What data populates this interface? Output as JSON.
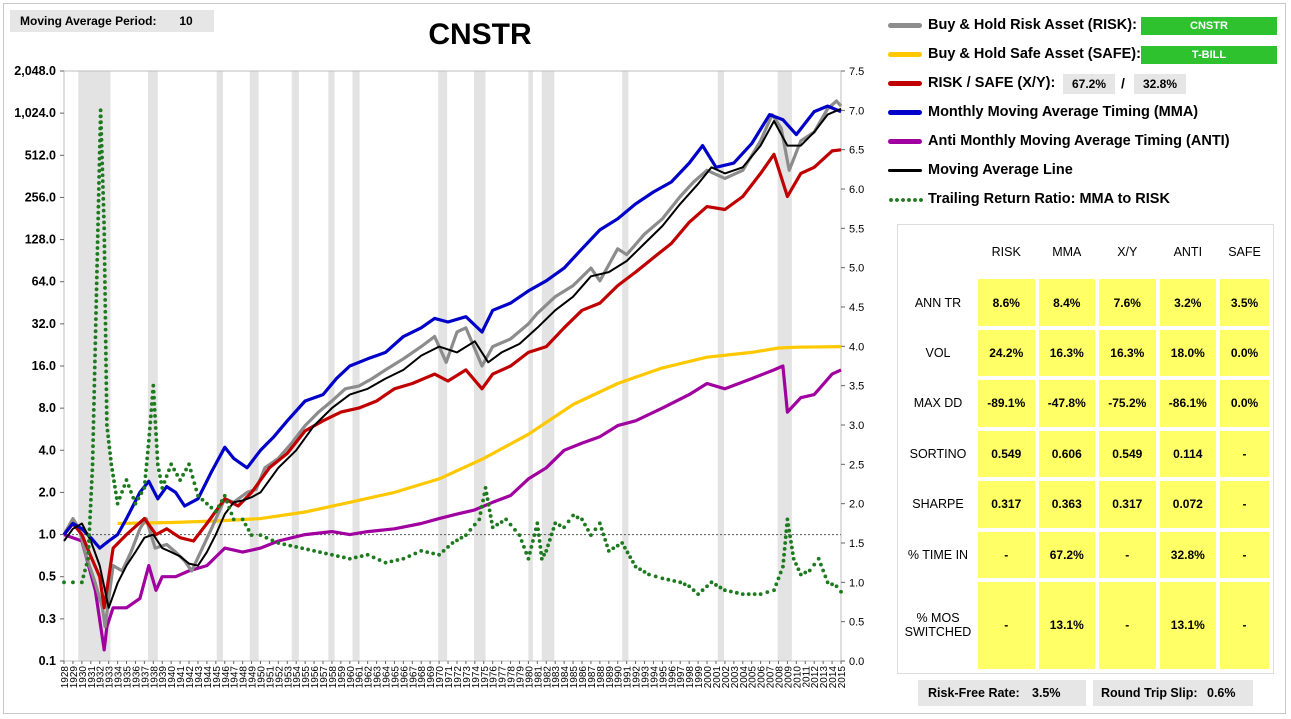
{
  "settings": {
    "period_label": "Moving Average Period:",
    "period_value": "10"
  },
  "legend": {
    "risk_label": "Buy & Hold Risk Asset (RISK):",
    "risk_asset": "CNSTR",
    "safe_label": "Buy & Hold Safe Asset (SAFE):",
    "safe_asset": "T-BILL",
    "xy_label": "RISK / SAFE (X/Y):",
    "xy_risk_pct": "67.2%",
    "xy_sep": "/",
    "xy_safe_pct": "32.8%",
    "mma_label": "Monthly Moving Average Timing (MMA)",
    "anti_label": "Anti Monthly Moving Average Timing (ANTI)",
    "ma_label": "Moving Average Line",
    "ratio_label": "Trailing Return Ratio: MMA to RISK"
  },
  "stats": {
    "headers": [
      "RISK",
      "MMA",
      "X/Y",
      "ANTI",
      "SAFE"
    ],
    "rows": [
      {
        "label": "ANN TR",
        "values": [
          "8.6%",
          "8.4%",
          "7.6%",
          "3.2%",
          "3.5%"
        ]
      },
      {
        "label": "VOL",
        "values": [
          "24.2%",
          "16.3%",
          "16.3%",
          "18.0%",
          "0.0%"
        ]
      },
      {
        "label": "MAX DD",
        "values": [
          "-89.1%",
          "-47.8%",
          "-75.2%",
          "-86.1%",
          "0.0%"
        ]
      },
      {
        "label": "SORTINO",
        "values": [
          "0.549",
          "0.606",
          "0.549",
          "0.114",
          "-"
        ]
      },
      {
        "label": "SHARPE",
        "values": [
          "0.317",
          "0.363",
          "0.317",
          "0.072",
          "-"
        ]
      },
      {
        "label": "% TIME IN",
        "values": [
          "-",
          "67.2%",
          "-",
          "32.8%",
          "-"
        ]
      },
      {
        "label_line1": "% MOS",
        "label_line2": "SWITCHED",
        "values": [
          "-",
          "13.1%",
          "-",
          "13.1%",
          "-"
        ]
      }
    ]
  },
  "footer": {
    "rf_label": "Risk-Free Rate:",
    "rf_value": "3.5%",
    "slip_label": "Round Trip Slip:",
    "slip_value": "0.6%"
  },
  "chart_data": {
    "type": "line",
    "title": "CNSTR",
    "y_scale": "log2",
    "ylim": [
      0.125,
      2048
    ],
    "yticks": [
      0.125,
      0.25,
      0.5,
      1,
      2,
      4,
      8,
      16,
      32,
      64,
      128,
      256,
      512,
      1024,
      2048
    ],
    "ytick_labels": [
      "0.1",
      "0.3",
      "0.5",
      "1.0",
      "2.0",
      "4.0",
      "8.0",
      "16.0",
      "32.0",
      "64.0",
      "128.0",
      "256.0",
      "512.0",
      "1,024.0",
      "2,048.0"
    ],
    "y2lim": [
      0,
      7.5
    ],
    "y2ticks": [
      0.0,
      0.5,
      1.0,
      1.5,
      2.0,
      2.5,
      3.0,
      3.5,
      4.0,
      4.5,
      5.0,
      5.5,
      6.0,
      6.5,
      7.0,
      7.5
    ],
    "y2tick_labels": [
      "0.0",
      "0.5",
      "1.0",
      "1.5",
      "2.0",
      "2.5",
      "3.0",
      "3.5",
      "4.0",
      "4.5",
      "5.0",
      "5.5",
      "6.0",
      "6.5",
      "7.0",
      "7.5"
    ],
    "xlim": [
      1928,
      2015
    ],
    "xticks": [
      1928,
      1929,
      1930,
      1931,
      1932,
      1933,
      1934,
      1935,
      1936,
      1937,
      1938,
      1939,
      1940,
      1941,
      1942,
      1943,
      1944,
      1945,
      1946,
      1947,
      1948,
      1949,
      1950,
      1951,
      1952,
      1953,
      1954,
      1955,
      1956,
      1957,
      1958,
      1959,
      1960,
      1961,
      1962,
      1963,
      1964,
      1965,
      1966,
      1967,
      1968,
      1969,
      1970,
      1971,
      1972,
      1973,
      1974,
      1975,
      1976,
      1977,
      1978,
      1979,
      1980,
      1981,
      1982,
      1983,
      1984,
      1985,
      1986,
      1987,
      1988,
      1989,
      1990,
      1991,
      1992,
      1993,
      1994,
      1995,
      1996,
      1997,
      1998,
      1999,
      2000,
      2001,
      2002,
      2003,
      2004,
      2005,
      2006,
      2007,
      2008,
      2009,
      2010,
      2011,
      2012,
      2013,
      2014,
      2015
    ],
    "grid": false,
    "reference_line_y": 1.0,
    "shaded_periods": [
      [
        1929.6,
        1933.2
      ],
      [
        1937.4,
        1938.5
      ],
      [
        1945.1,
        1945.8
      ],
      [
        1948.8,
        1949.8
      ],
      [
        1953.5,
        1954.3
      ],
      [
        1957.6,
        1958.3
      ],
      [
        1960.3,
        1961.1
      ],
      [
        1969.9,
        1970.9
      ],
      [
        1973.9,
        1975.2
      ],
      [
        1980.0,
        1980.5
      ],
      [
        1981.5,
        1982.9
      ],
      [
        1990.5,
        1991.2
      ],
      [
        2001.2,
        2001.9
      ],
      [
        2007.9,
        2009.5
      ]
    ],
    "series": [
      {
        "name": "Buy & Hold Risk Asset (RISK)",
        "color": "#8c8c8c",
        "axis": "left",
        "style": "line",
        "x": [
          1928,
          1929,
          1929.7,
          1930.5,
          1931.5,
          1932.3,
          1932.6,
          1933.5,
          1934.5,
          1935.5,
          1936.5,
          1937.2,
          1938.2,
          1939.5,
          1940.5,
          1941.5,
          1942.3,
          1943.5,
          1944.5,
          1946.0,
          1947.0,
          1948.5,
          1949.5,
          1950.5,
          1952.0,
          1953.5,
          1955.0,
          1956.5,
          1958.0,
          1959.5,
          1961.0,
          1962.5,
          1964.0,
          1966.0,
          1968.0,
          1969.5,
          1970.8,
          1972.0,
          1973.0,
          1974.8,
          1976.0,
          1978.0,
          1980.0,
          1981.0,
          1983.0,
          1985.0,
          1987.0,
          1988.0,
          1990.0,
          1991.0,
          1993.0,
          1995.0,
          1997.0,
          1998.5,
          2000.0,
          2002.0,
          2004.0,
          2006.0,
          2007.3,
          2008.3,
          2009.2,
          2010.5,
          2012.0,
          2013.5,
          2014.5,
          2015
        ],
        "y": [
          1.0,
          1.3,
          1.1,
          0.7,
          0.45,
          0.3,
          0.22,
          0.6,
          0.55,
          0.75,
          1.1,
          1.3,
          0.8,
          0.85,
          0.75,
          0.65,
          0.55,
          0.8,
          1.1,
          1.8,
          1.7,
          2.0,
          2.1,
          3.0,
          3.5,
          4.5,
          6.0,
          7.5,
          9.0,
          11.0,
          11.5,
          13.0,
          15.0,
          18.0,
          22.0,
          26.0,
          17.0,
          28.0,
          30.0,
          16.0,
          22.0,
          25.0,
          32.0,
          38.0,
          50.0,
          60.0,
          80.0,
          65.0,
          110.0,
          100.0,
          140.0,
          180.0,
          260.0,
          330.0,
          400.0,
          350.0,
          400.0,
          650.0,
          1000.0,
          800.0,
          400.0,
          650.0,
          750.0,
          1100.0,
          1250.0,
          1150.0
        ]
      },
      {
        "name": "Buy & Hold Safe Asset (SAFE)",
        "color": "#ffc800",
        "axis": "left",
        "style": "line",
        "x": [
          1934,
          1940,
          1945,
          1950,
          1955,
          1960,
          1965,
          1970,
          1975,
          1980,
          1985,
          1990,
          1995,
          2000,
          2005,
          2008,
          2010,
          2015
        ],
        "y": [
          1.2,
          1.22,
          1.25,
          1.3,
          1.45,
          1.7,
          2.0,
          2.5,
          3.5,
          5.2,
          8.5,
          12.0,
          15.5,
          18.5,
          20.0,
          21.5,
          21.8,
          22.0
        ]
      },
      {
        "name": "RISK / SAFE (X/Y)",
        "color": "#c00000",
        "axis": "left",
        "style": "line",
        "x": [
          1928,
          1929,
          1930,
          1931,
          1932.0,
          1932.5,
          1933.5,
          1935.0,
          1937.0,
          1938.3,
          1939.5,
          1941.0,
          1942.5,
          1944.0,
          1946.0,
          1947.5,
          1949.0,
          1951.0,
          1953.0,
          1955.0,
          1957.0,
          1959.0,
          1961.0,
          1963.0,
          1965.0,
          1967.0,
          1969.5,
          1971.0,
          1973.0,
          1974.8,
          1976.0,
          1978.0,
          1980.0,
          1982.0,
          1984.0,
          1986.0,
          1988.0,
          1990.0,
          1992.0,
          1994.0,
          1996.0,
          1998.0,
          2000.0,
          2002.0,
          2004.0,
          2006.0,
          2007.5,
          2009.0,
          2010.5,
          2012.0,
          2014.0,
          2015
        ],
        "y": [
          1.0,
          1.2,
          1.0,
          0.7,
          0.5,
          0.3,
          0.8,
          1.0,
          1.3,
          1.0,
          1.1,
          0.95,
          0.9,
          1.2,
          1.8,
          1.6,
          2.0,
          3.0,
          3.8,
          5.5,
          6.5,
          7.5,
          8.0,
          9.0,
          11.0,
          12.0,
          14.0,
          12.5,
          15.0,
          11.0,
          14.0,
          16.0,
          20.0,
          22.0,
          30.0,
          40.0,
          45.0,
          60.0,
          75.0,
          95.0,
          120.0,
          170.0,
          220.0,
          210.0,
          260.0,
          380.0,
          520.0,
          260.0,
          380.0,
          420.0,
          550.0,
          560.0
        ]
      },
      {
        "name": "Monthly Moving Average Timing (MMA)",
        "color": "#0000c8",
        "axis": "left",
        "style": "line",
        "x": [
          1928,
          1929,
          1930,
          1931,
          1932,
          1933,
          1934,
          1935,
          1936.5,
          1937.5,
          1938.5,
          1939.5,
          1940.5,
          1941.5,
          1943.0,
          1944.5,
          1946.0,
          1947.0,
          1948.5,
          1950.0,
          1951.5,
          1953.0,
          1955.0,
          1957.0,
          1958.5,
          1960.0,
          1962.0,
          1964.0,
          1966.0,
          1968.0,
          1969.5,
          1971.0,
          1973.0,
          1974.8,
          1976.0,
          1978.0,
          1980.0,
          1982.0,
          1984.0,
          1986.0,
          1988.0,
          1990.0,
          1992.0,
          1994.0,
          1996.0,
          1998.0,
          1999.5,
          2001.0,
          2003.0,
          2005.0,
          2007.0,
          2008.5,
          2010.0,
          2012.0,
          2013.5,
          2015
        ],
        "y": [
          1.0,
          1.2,
          1.1,
          0.95,
          0.8,
          0.9,
          1.0,
          1.3,
          2.0,
          2.4,
          1.8,
          2.2,
          2.0,
          1.6,
          1.8,
          2.8,
          4.2,
          3.5,
          3.0,
          4.0,
          5.0,
          6.5,
          9.0,
          10.0,
          13.0,
          16.0,
          18.0,
          20.0,
          26.0,
          30.0,
          35.0,
          33.0,
          36.0,
          28.0,
          40.0,
          45.0,
          55.0,
          65.0,
          80.0,
          110.0,
          150.0,
          180.0,
          230.0,
          280.0,
          330.0,
          450.0,
          600.0,
          420.0,
          450.0,
          620.0,
          1000.0,
          920.0,
          720.0,
          1050.0,
          1150.0,
          1050.0
        ]
      },
      {
        "name": "Anti Monthly Moving Average Timing (ANTI)",
        "color": "#a000a0",
        "axis": "left",
        "style": "line",
        "x": [
          1928,
          1930,
          1931.5,
          1932.5,
          1932.8,
          1933.5,
          1935.0,
          1936.5,
          1937.5,
          1938.3,
          1939.0,
          1940.5,
          1942.0,
          1944.0,
          1946.0,
          1948.0,
          1950.0,
          1952.0,
          1955.0,
          1958.0,
          1960.0,
          1962.0,
          1965.0,
          1968.0,
          1970.0,
          1972.0,
          1974.0,
          1976.0,
          1978.0,
          1980.0,
          1982.0,
          1984.0,
          1986.0,
          1988.0,
          1990.0,
          1992.0,
          1995.0,
          1998.0,
          2000.0,
          2002.0,
          2005.0,
          2007.5,
          2008.5,
          2009.0,
          2010.5,
          2012.0,
          2014.0,
          2015
        ],
        "y": [
          1.0,
          0.9,
          0.4,
          0.15,
          0.22,
          0.3,
          0.3,
          0.35,
          0.6,
          0.4,
          0.5,
          0.5,
          0.55,
          0.6,
          0.8,
          0.75,
          0.8,
          0.9,
          1.0,
          1.05,
          1.0,
          1.05,
          1.1,
          1.2,
          1.3,
          1.4,
          1.5,
          1.7,
          1.9,
          2.5,
          3.0,
          4.0,
          4.5,
          5.0,
          6.0,
          6.5,
          8.0,
          10.0,
          12.0,
          11.0,
          13.0,
          15.0,
          16.0,
          7.5,
          9.5,
          10.0,
          14.0,
          15.0
        ]
      },
      {
        "name": "Moving Average Line",
        "color": "#000000",
        "axis": "left",
        "style": "line",
        "x": [
          1928,
          1929,
          1930,
          1931,
          1932,
          1933,
          1934,
          1935,
          1936,
          1937,
          1938,
          1939,
          1940,
          1941,
          1942,
          1943,
          1944,
          1945,
          1946,
          1947,
          1948,
          1949,
          1950,
          1952,
          1954,
          1956,
          1958,
          1960,
          1962,
          1964,
          1966,
          1968,
          1970,
          1972,
          1974,
          1975.5,
          1977,
          1979,
          1981,
          1983,
          1985,
          1987,
          1989,
          1991,
          1993,
          1995,
          1997,
          1999,
          2000.5,
          2002,
          2004,
          2006,
          2007.5,
          2009,
          2010.5,
          2012,
          2013.5,
          2015
        ],
        "y": [
          0.9,
          1.1,
          1.2,
          0.9,
          0.6,
          0.3,
          0.45,
          0.6,
          0.75,
          0.95,
          1.0,
          0.8,
          0.75,
          0.7,
          0.62,
          0.6,
          0.75,
          1.0,
          1.4,
          1.7,
          1.75,
          1.85,
          2.0,
          3.0,
          4.0,
          6.0,
          8.0,
          10.0,
          11.0,
          13.0,
          15.0,
          19.0,
          22.0,
          20.0,
          24.0,
          17.0,
          20.0,
          23.0,
          30.0,
          40.0,
          50.0,
          70.0,
          75.0,
          90.0,
          120.0,
          160.0,
          230.0,
          320.0,
          420.0,
          380.0,
          420.0,
          600.0,
          900.0,
          600.0,
          600.0,
          750.0,
          1000.0,
          1100.0
        ]
      },
      {
        "name": "Trailing Return Ratio: MMA to RISK",
        "color": "#1e7a1e",
        "axis": "right",
        "style": "dotted",
        "x": [
          1928,
          1929,
          1930,
          1930.7,
          1931.2,
          1931.6,
          1931.9,
          1932.1,
          1932.5,
          1932.8,
          1933.3,
          1934.0,
          1935.0,
          1936.0,
          1937.0,
          1937.5,
          1938.0,
          1938.5,
          1939.0,
          1940.0,
          1941.0,
          1942.0,
          1943.0,
          1944.0,
          1945.0,
          1946.0,
          1947.0,
          1948.0,
          1949.0,
          1950.0,
          1952.0,
          1954.0,
          1956.0,
          1958.0,
          1960.0,
          1962.0,
          1964.0,
          1966.0,
          1968.0,
          1970.0,
          1971.5,
          1973.0,
          1974.5,
          1975.2,
          1976.0,
          1977.5,
          1979.0,
          1980.0,
          1981.0,
          1981.5,
          1982.0,
          1983.0,
          1984.0,
          1985.0,
          1986.0,
          1987.0,
          1988.0,
          1989.0,
          1990.5,
          1992.0,
          1993.5,
          1995.0,
          1997.0,
          1998.0,
          1999.0,
          2000.5,
          2002.0,
          2004.0,
          2006.0,
          2007.5,
          2008.5,
          2009.0,
          2009.7,
          2010.5,
          2011.5,
          2012.5,
          2013.5,
          2014.5,
          2015
        ],
        "y": [
          1.0,
          1.0,
          1.0,
          1.3,
          2.5,
          4.5,
          6.0,
          7.0,
          5.5,
          3.0,
          2.5,
          2.0,
          2.3,
          2.0,
          2.2,
          2.8,
          3.5,
          2.5,
          2.2,
          2.5,
          2.3,
          2.5,
          2.1,
          2.0,
          1.9,
          2.1,
          1.8,
          1.8,
          1.6,
          1.6,
          1.5,
          1.45,
          1.4,
          1.35,
          1.3,
          1.35,
          1.25,
          1.3,
          1.4,
          1.35,
          1.5,
          1.6,
          1.8,
          2.2,
          1.7,
          1.8,
          1.6,
          1.3,
          1.75,
          1.3,
          1.4,
          1.75,
          1.7,
          1.85,
          1.8,
          1.6,
          1.75,
          1.4,
          1.5,
          1.2,
          1.1,
          1.05,
          1.0,
          0.95,
          0.85,
          1.0,
          0.9,
          0.85,
          0.85,
          0.9,
          1.2,
          1.8,
          1.3,
          1.1,
          1.15,
          1.3,
          1.0,
          0.95,
          0.88
        ]
      }
    ]
  }
}
